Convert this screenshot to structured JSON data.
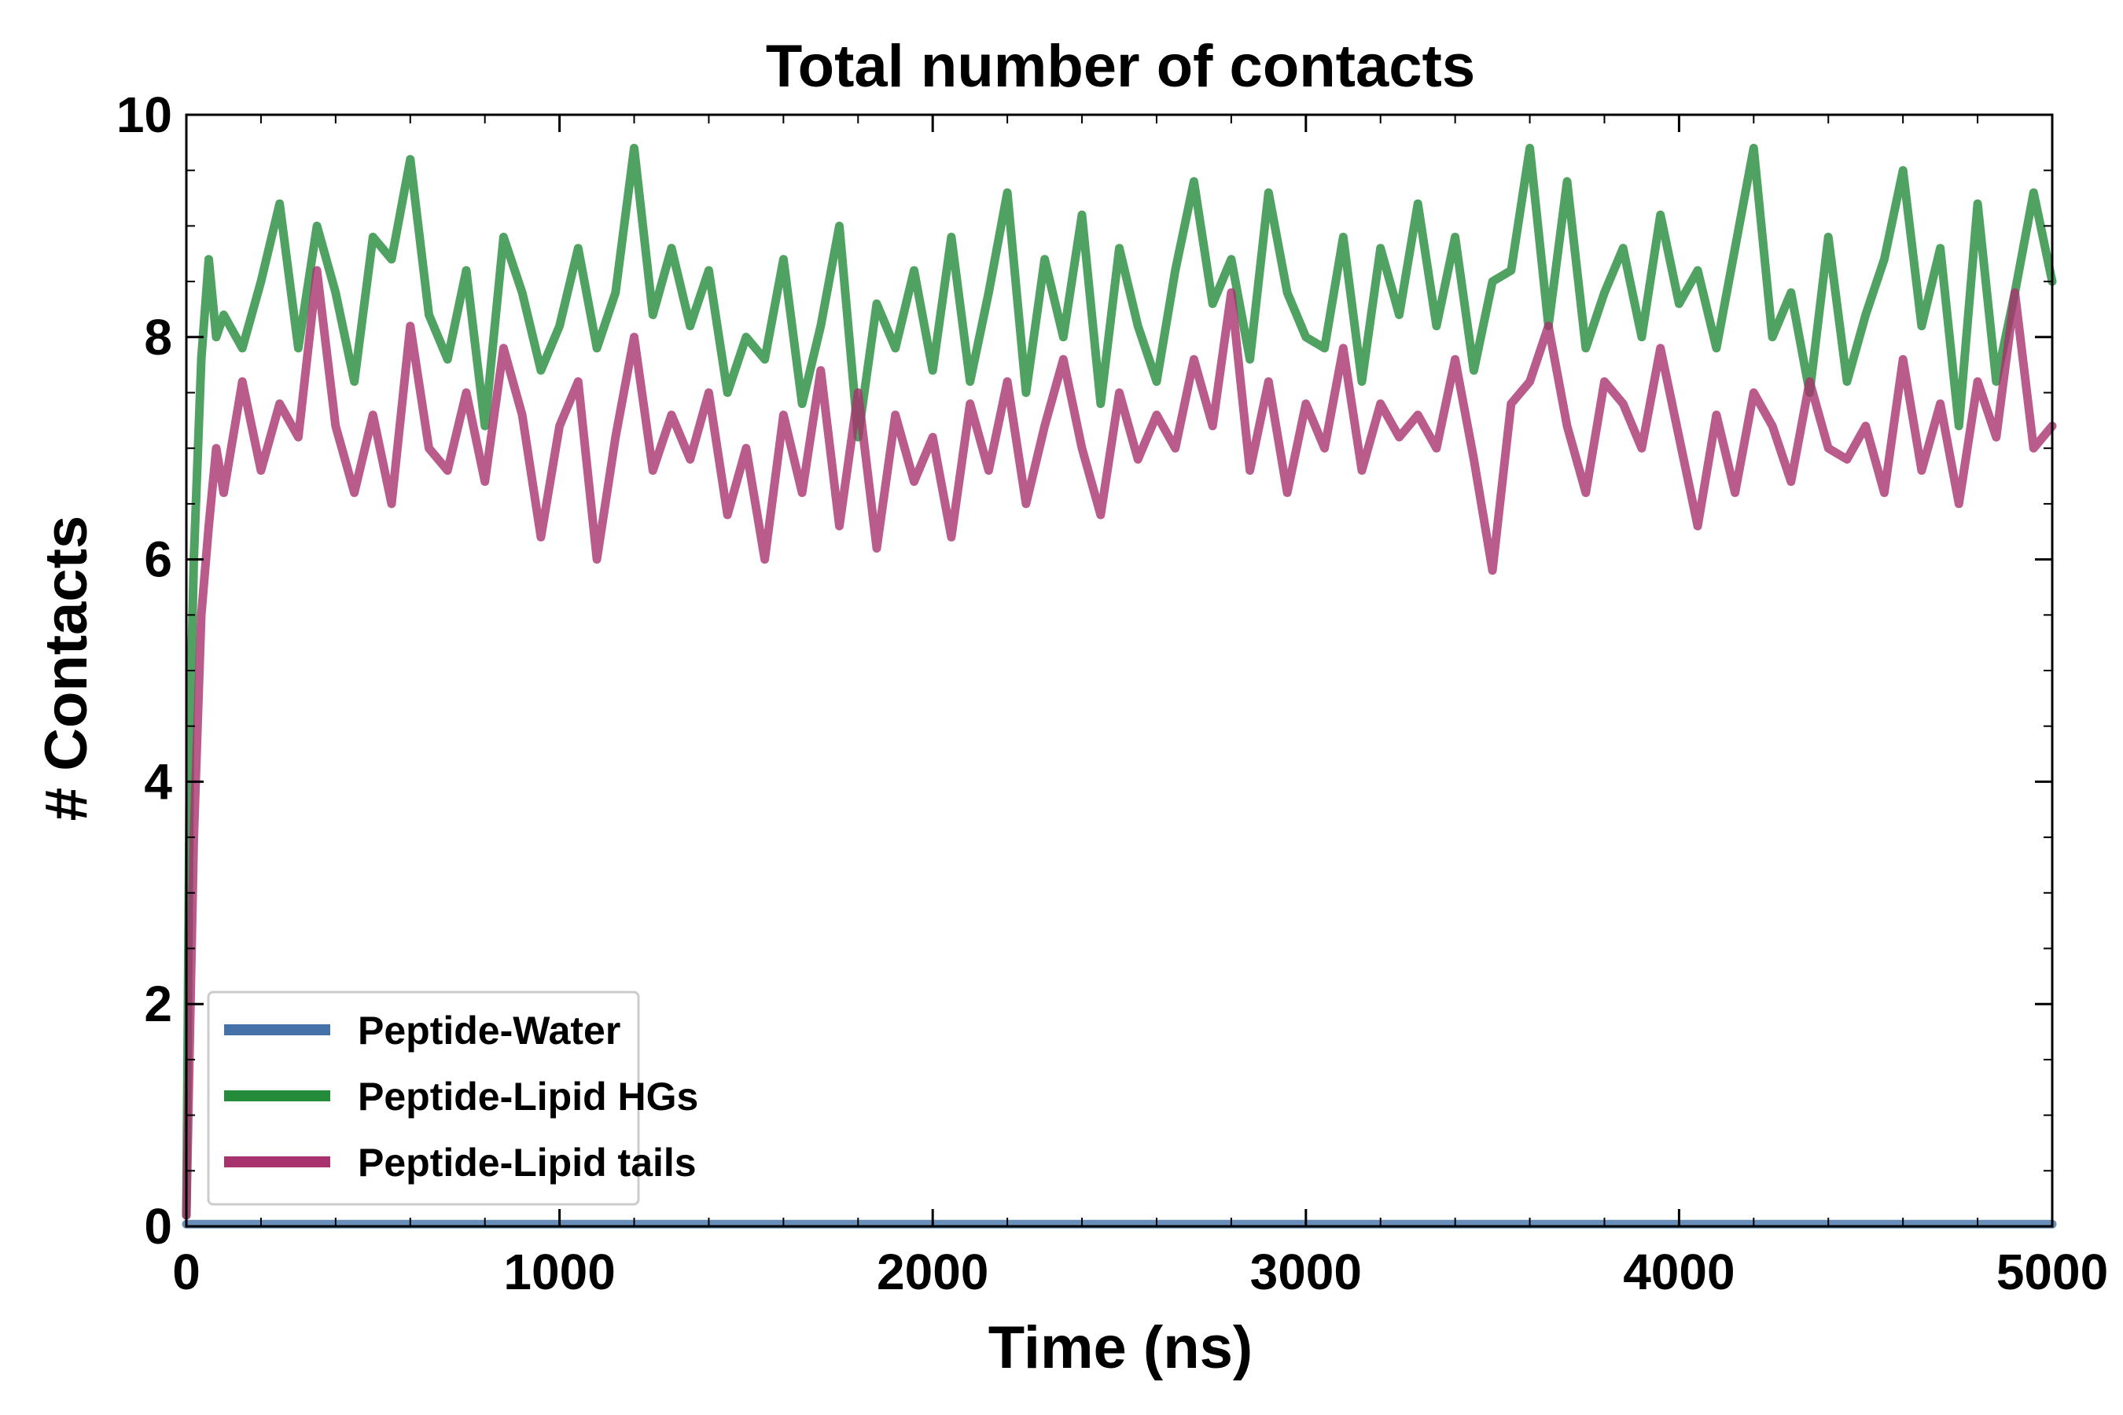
{
  "chart_data": {
    "type": "line",
    "title": "Total number of contacts",
    "xlabel": "Time (ns)",
    "ylabel": "# Contacts",
    "xlim": [
      0,
      5000
    ],
    "ylim": [
      0,
      10
    ],
    "x_ticks": [
      0,
      1000,
      2000,
      3000,
      4000,
      5000
    ],
    "y_ticks": [
      0,
      2,
      4,
      6,
      8,
      10
    ],
    "x_tick_labels": [
      "0",
      "1000",
      "2000",
      "3000",
      "4000",
      "5000"
    ],
    "y_tick_labels": [
      "0",
      "2",
      "4",
      "6",
      "8",
      "10"
    ],
    "grid": false,
    "legend_position": "lower-left",
    "series": [
      {
        "name": "Peptide-Water",
        "color": "#4472a8",
        "x": [
          0,
          5000
        ],
        "y": [
          0.02,
          0.02
        ]
      },
      {
        "name": "Peptide-Lipid HGs",
        "color": "#238b3a",
        "x": [
          0,
          10,
          20,
          40,
          60,
          80,
          100,
          150,
          200,
          250,
          300,
          350,
          400,
          450,
          500,
          550,
          600,
          650,
          700,
          750,
          800,
          850,
          900,
          950,
          1000,
          1050,
          1100,
          1150,
          1200,
          1250,
          1300,
          1350,
          1400,
          1450,
          1500,
          1550,
          1600,
          1650,
          1700,
          1750,
          1800,
          1850,
          1900,
          1950,
          2000,
          2050,
          2100,
          2150,
          2200,
          2250,
          2300,
          2350,
          2400,
          2450,
          2500,
          2550,
          2600,
          2650,
          2700,
          2750,
          2800,
          2850,
          2900,
          2950,
          3000,
          3050,
          3100,
          3150,
          3200,
          3250,
          3300,
          3350,
          3400,
          3450,
          3500,
          3550,
          3600,
          3650,
          3700,
          3750,
          3800,
          3850,
          3900,
          3950,
          4000,
          4050,
          4100,
          4150,
          4200,
          4250,
          4300,
          4350,
          4400,
          4450,
          4500,
          4550,
          4600,
          4650,
          4700,
          4750,
          4800,
          4850,
          4900,
          4950,
          5000
        ],
        "y": [
          0.1,
          4.5,
          6.0,
          7.8,
          8.7,
          8.0,
          8.2,
          7.9,
          8.5,
          9.2,
          7.9,
          9.0,
          8.4,
          7.6,
          8.9,
          8.7,
          9.6,
          8.2,
          7.8,
          8.6,
          7.2,
          8.9,
          8.4,
          7.7,
          8.1,
          8.8,
          7.9,
          8.4,
          9.7,
          8.2,
          8.8,
          8.1,
          8.6,
          7.5,
          8.0,
          7.8,
          8.7,
          7.4,
          8.1,
          9.0,
          7.1,
          8.3,
          7.9,
          8.6,
          7.7,
          8.9,
          7.6,
          8.4,
          9.3,
          7.5,
          8.7,
          8.0,
          9.1,
          7.4,
          8.8,
          8.1,
          7.6,
          8.6,
          9.4,
          8.3,
          8.7,
          7.8,
          9.3,
          8.4,
          8.0,
          7.9,
          8.9,
          7.6,
          8.8,
          8.2,
          9.2,
          8.1,
          8.9,
          7.7,
          8.5,
          8.6,
          9.7,
          8.1,
          9.4,
          7.9,
          8.4,
          8.8,
          8.0,
          9.1,
          8.3,
          8.6,
          7.9,
          8.8,
          9.7,
          8.0,
          8.4,
          7.5,
          8.9,
          7.6,
          8.2,
          8.7,
          9.5,
          8.1,
          8.8,
          7.2,
          9.2,
          7.6,
          8.4,
          9.3,
          8.5
        ]
      },
      {
        "name": "Peptide-Lipid tails",
        "color": "#a8326e",
        "x": [
          0,
          10,
          20,
          40,
          60,
          80,
          100,
          150,
          200,
          250,
          300,
          350,
          400,
          450,
          500,
          550,
          600,
          650,
          700,
          750,
          800,
          850,
          900,
          950,
          1000,
          1050,
          1100,
          1150,
          1200,
          1250,
          1300,
          1350,
          1400,
          1450,
          1500,
          1550,
          1600,
          1650,
          1700,
          1750,
          1800,
          1850,
          1900,
          1950,
          2000,
          2050,
          2100,
          2150,
          2200,
          2250,
          2300,
          2350,
          2400,
          2450,
          2500,
          2550,
          2600,
          2650,
          2700,
          2750,
          2800,
          2850,
          2900,
          2950,
          3000,
          3050,
          3100,
          3150,
          3200,
          3250,
          3300,
          3350,
          3400,
          3450,
          3500,
          3550,
          3600,
          3650,
          3700,
          3750,
          3800,
          3850,
          3900,
          3950,
          4000,
          4050,
          4100,
          4150,
          4200,
          4250,
          4300,
          4350,
          4400,
          4450,
          4500,
          4550,
          4600,
          4650,
          4700,
          4750,
          4800,
          4850,
          4900,
          4950,
          5000
        ],
        "y": [
          0.1,
          1.8,
          3.5,
          5.5,
          6.3,
          7.0,
          6.6,
          7.6,
          6.8,
          7.4,
          7.1,
          8.6,
          7.2,
          6.6,
          7.3,
          6.5,
          8.1,
          7.0,
          6.8,
          7.5,
          6.7,
          7.9,
          7.3,
          6.2,
          7.2,
          7.6,
          6.0,
          7.1,
          8.0,
          6.8,
          7.3,
          6.9,
          7.5,
          6.4,
          7.0,
          6.0,
          7.3,
          6.6,
          7.7,
          6.3,
          7.5,
          6.1,
          7.3,
          6.7,
          7.1,
          6.2,
          7.4,
          6.8,
          7.6,
          6.5,
          7.2,
          7.8,
          7.0,
          6.4,
          7.5,
          6.9,
          7.3,
          7.0,
          7.8,
          7.2,
          8.4,
          6.8,
          7.6,
          6.6,
          7.4,
          7.0,
          7.9,
          6.8,
          7.4,
          7.1,
          7.3,
          7.0,
          7.8,
          6.9,
          5.9,
          7.4,
          7.6,
          8.1,
          7.2,
          6.6,
          7.6,
          7.4,
          7.0,
          7.9,
          7.1,
          6.3,
          7.3,
          6.6,
          7.5,
          7.2,
          6.7,
          7.6,
          7.0,
          6.9,
          7.2,
          6.6,
          7.8,
          6.8,
          7.4,
          6.5,
          7.6,
          7.1,
          8.4,
          7.0,
          7.2
        ]
      }
    ]
  }
}
